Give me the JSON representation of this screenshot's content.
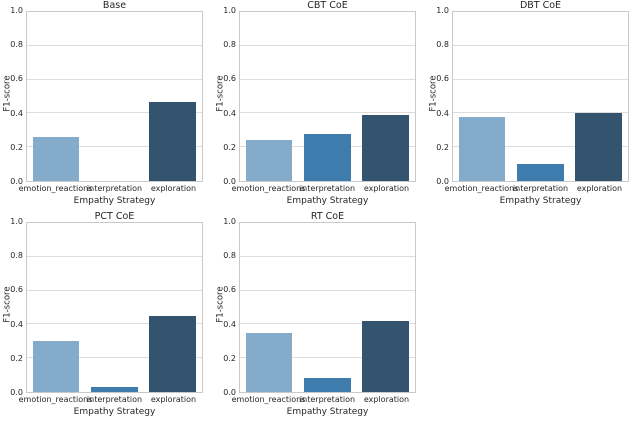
{
  "figure": {
    "background": "#ffffff",
    "layout": "3 columns x 2 rows of subplots, bottom-right cell empty"
  },
  "style": {
    "bar_colors": [
      "#84abc9",
      "#3f7cae",
      "#33536e"
    ],
    "grid_color": "#dddddd",
    "spine_color": "#c9c9c9",
    "text_color": "#262626"
  },
  "axes": {
    "ylim": [
      0.0,
      1.0
    ],
    "ytick_labels": [
      "0.0",
      "0.2",
      "0.4",
      "0.6",
      "0.8",
      "1.0"
    ],
    "grid": "horizontal gridlines at each 0.2"
  },
  "chart_data": [
    {
      "type": "bar",
      "title": "Base",
      "xlabel": "Empathy Strategy",
      "ylabel": "F1-score",
      "categories": [
        "emotion_reactions",
        "interpretation",
        "exploration"
      ],
      "values": [
        0.26,
        0.0,
        0.47
      ],
      "ylim": [
        0,
        1
      ]
    },
    {
      "type": "bar",
      "title": "CBT CoE",
      "xlabel": "Empathy Strategy",
      "ylabel": "F1-score",
      "categories": [
        "emotion_reactions",
        "interpretation",
        "exploration"
      ],
      "values": [
        0.24,
        0.28,
        0.39
      ],
      "ylim": [
        0,
        1
      ]
    },
    {
      "type": "bar",
      "title": "DBT CoE",
      "xlabel": "Empathy Strategy",
      "ylabel": "F1-score",
      "categories": [
        "emotion_reactions",
        "interpretation",
        "exploration"
      ],
      "values": [
        0.38,
        0.1,
        0.4
      ],
      "ylim": [
        0,
        1
      ]
    },
    {
      "type": "bar",
      "title": "PCT CoE",
      "xlabel": "Empathy Strategy",
      "ylabel": "F1-score",
      "categories": [
        "emotion_reactions",
        "interpretation",
        "exploration"
      ],
      "values": [
        0.3,
        0.03,
        0.45
      ],
      "ylim": [
        0,
        1
      ]
    },
    {
      "type": "bar",
      "title": "RT CoE",
      "xlabel": "Empathy Strategy",
      "ylabel": "F1-score",
      "categories": [
        "emotion_reactions",
        "interpretation",
        "exploration"
      ],
      "values": [
        0.35,
        0.08,
        0.42
      ],
      "ylim": [
        0,
        1
      ]
    }
  ]
}
